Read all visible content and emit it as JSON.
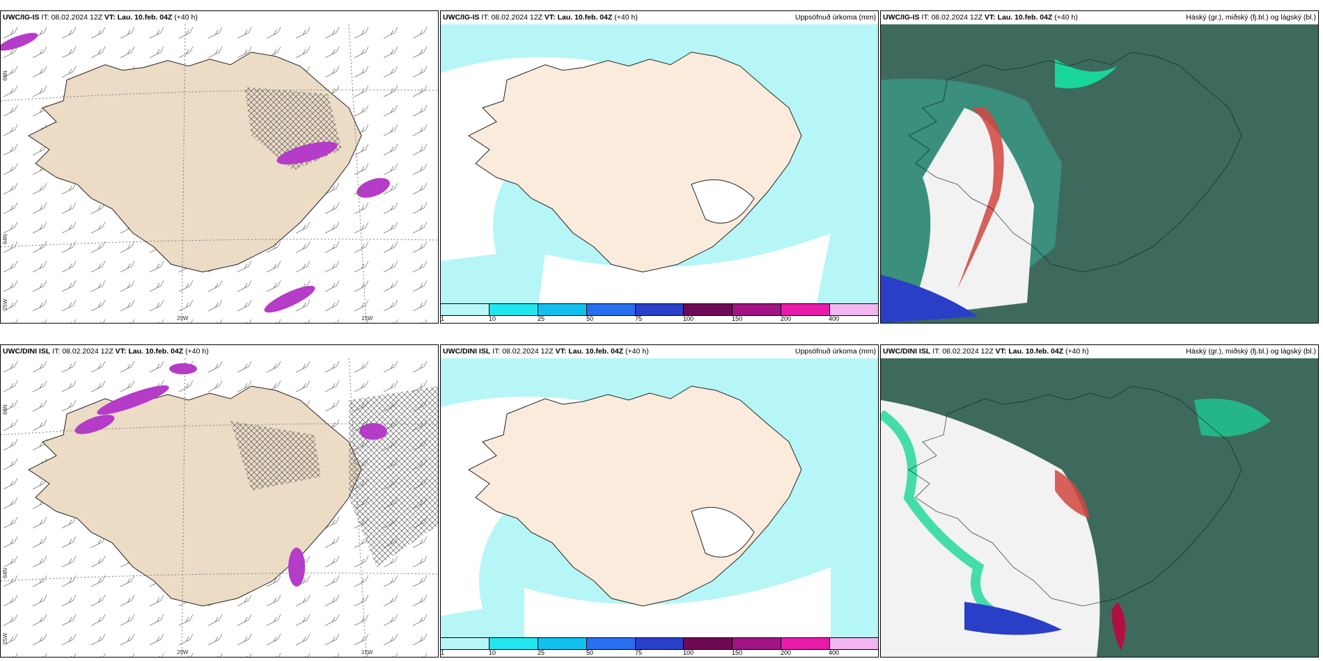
{
  "rows": [
    {
      "model": "UWC/IG-IS",
      "panels": [
        {
          "id": "wind",
          "it_label": "IT:",
          "it": "08.02.2024 12Z",
          "vt_label": "VT:",
          "vt": "Lau. 10.feb. 04Z",
          "lead": "(+40 h)",
          "title_right": ""
        },
        {
          "id": "precip",
          "it_label": "IT:",
          "it": "08.02.2024 12Z",
          "vt_label": "VT:",
          "vt": "Lau. 10.feb. 04Z",
          "lead": "(+40 h)",
          "title_right": "Uppsöfnuð úrkoma (mm)"
        },
        {
          "id": "cloud",
          "it_label": "IT:",
          "it": "08.02.2024 12Z",
          "vt_label": "VT:",
          "vt": "Lau. 10.feb. 04Z",
          "lead": "(+40 h)",
          "title_right": "Háský (gr.), miðský (fj.bl.) og lágský (bl.)"
        }
      ]
    },
    {
      "model": "UWC/DINI ISL",
      "panels": [
        {
          "id": "wind",
          "it_label": "IT:",
          "it": "08.02.2024 12Z",
          "vt_label": "VT:",
          "vt": "Lau. 10.feb. 04Z",
          "lead": "(+40 h)",
          "title_right": ""
        },
        {
          "id": "precip",
          "it_label": "IT:",
          "it": "08.02.2024 12Z",
          "vt_label": "VT:",
          "vt": "Lau. 10.feb. 04Z",
          "lead": "(+40 h)",
          "title_right": "Uppsöfnuð úrkoma (mm)"
        },
        {
          "id": "cloud",
          "it_label": "IT:",
          "it": "08.02.2024 12Z",
          "vt_label": "VT:",
          "vt": "Lau. 10.feb. 04Z",
          "lead": "(+40 h)",
          "title_right": "Háský (gr.), miðský (fj.bl.) og lágský (bl.)"
        }
      ]
    }
  ],
  "colorbar": {
    "ticks": [
      "1",
      "10",
      "25",
      "50",
      "75",
      "100",
      "150",
      "200",
      "400"
    ],
    "colors": [
      "#b8f7f7",
      "#22e6ee",
      "#12c0ee",
      "#2a6ef0",
      "#2a3fc8",
      "#6e0a55",
      "#a01483",
      "#e81aa8",
      "#f2b6f0"
    ]
  },
  "axis_labels": {
    "lon": [
      "20W",
      "15W"
    ],
    "lat": [
      "66N",
      "64N",
      "25W"
    ]
  },
  "colors": {
    "land": "#ecdcc6",
    "ocean_snow": "#b6f6f6",
    "pink": "#b43cc8",
    "cloud_dark": "#3e6a5e",
    "cloud_green": "#19d69a"
  }
}
